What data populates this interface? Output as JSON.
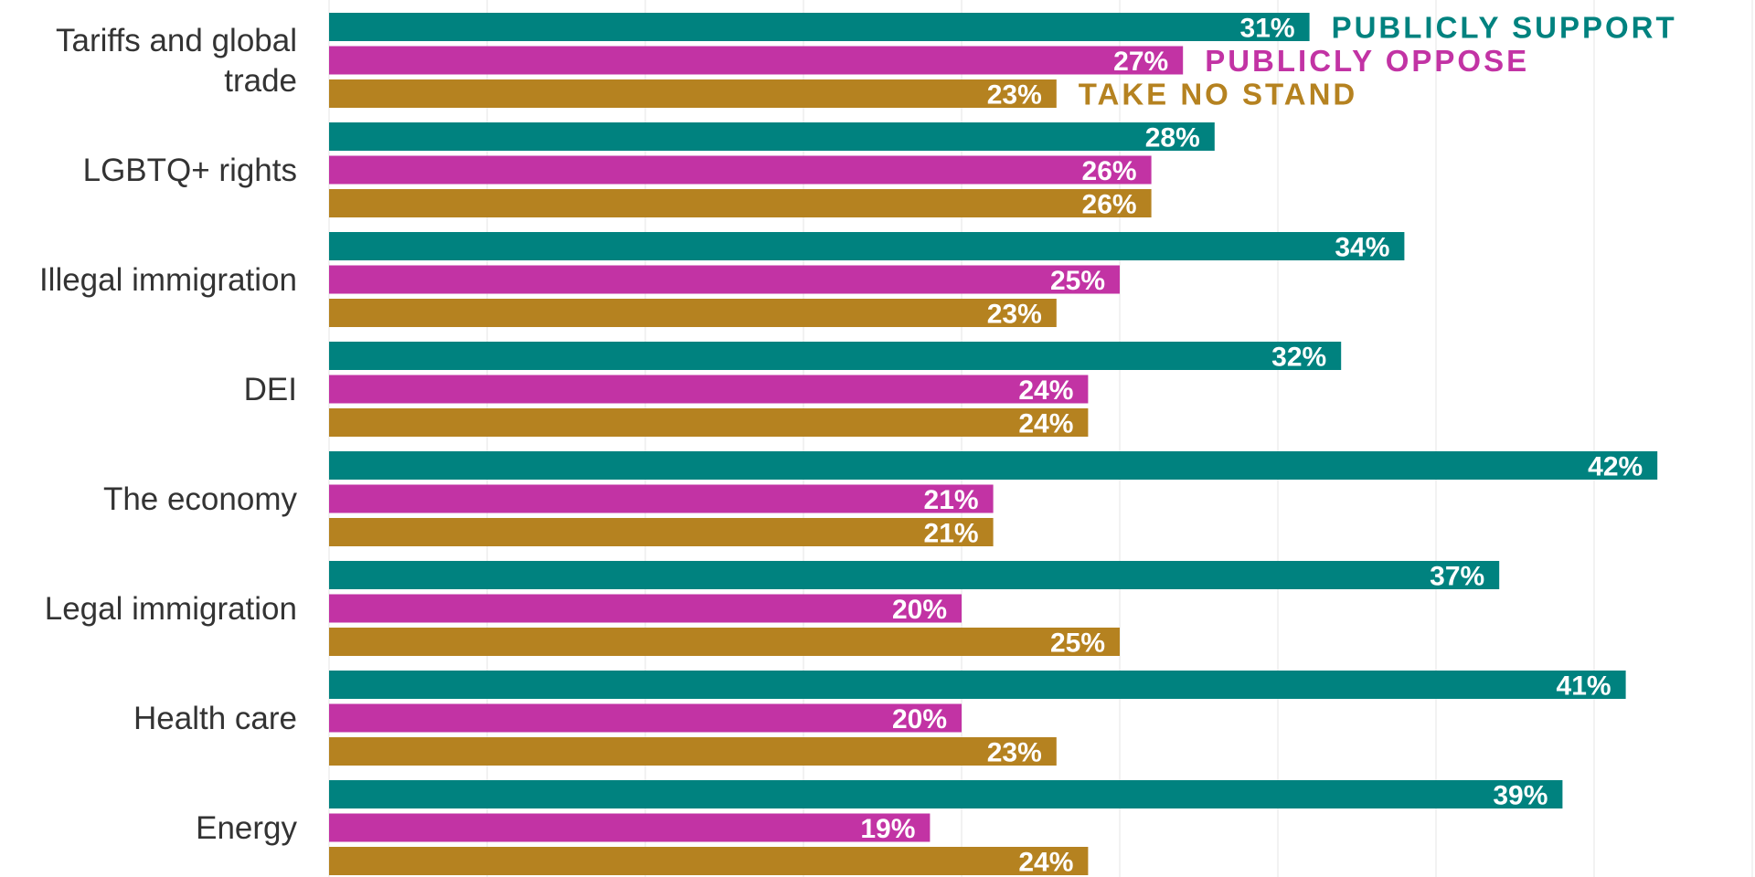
{
  "chart_data": {
    "type": "bar",
    "orientation": "horizontal",
    "categories": [
      [
        "Tariffs and global",
        "trade"
      ],
      [
        "LGBTQ+ rights"
      ],
      [
        "Illegal immigration"
      ],
      [
        "DEI"
      ],
      [
        "The economy"
      ],
      [
        "Legal immigration"
      ],
      [
        "Health care"
      ],
      [
        "Energy"
      ]
    ],
    "series": [
      {
        "name": "PUBLICLY SUPPORT",
        "color": "#00827f",
        "values": [
          31,
          28,
          34,
          32,
          42,
          37,
          41,
          39
        ]
      },
      {
        "name": "PUBLICLY OPPOSE",
        "color": "#c233a4",
        "values": [
          27,
          26,
          25,
          24,
          21,
          20,
          20,
          19
        ]
      },
      {
        "name": "TAKE NO STAND",
        "color": "#b58220",
        "values": [
          23,
          26,
          23,
          24,
          21,
          25,
          23,
          24
        ]
      }
    ],
    "value_suffix": "%",
    "xlim": [
      0,
      45
    ],
    "grid": true,
    "legend": "inline next to first group"
  }
}
